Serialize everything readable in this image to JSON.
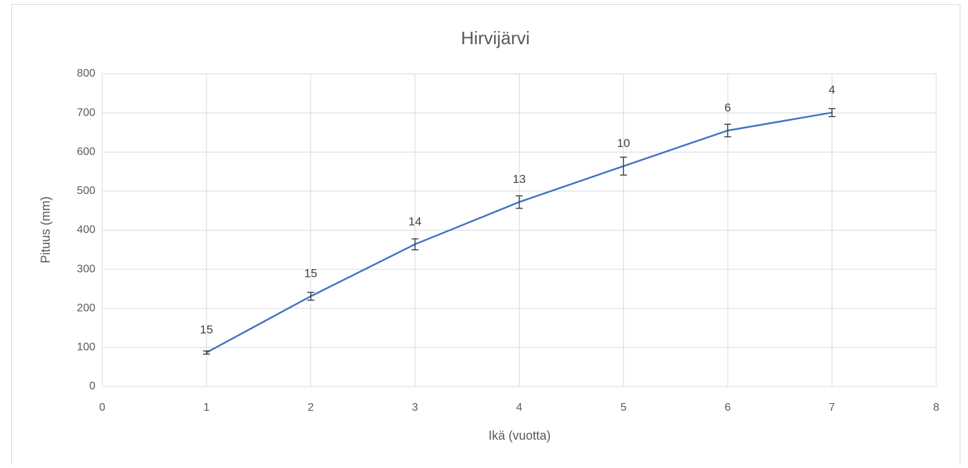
{
  "chart_data": {
    "type": "line",
    "title": "Hirvijärvi",
    "x_label": "Ikä (vuotta)",
    "y_label": "Pituus (mm)",
    "x": [
      1,
      2,
      3,
      4,
      5,
      6,
      7
    ],
    "series": [
      {
        "name": "Pituus",
        "color": "#4472c4",
        "values": [
          87,
          231,
          364,
          472,
          564,
          655,
          701
        ],
        "errors": [
          4,
          10,
          14,
          16,
          23,
          16,
          10
        ],
        "labels": [
          15,
          15,
          14,
          13,
          10,
          6,
          4
        ]
      }
    ],
    "error_color": "#404040",
    "xlim": [
      0,
      8
    ],
    "xticks": [
      0,
      1,
      2,
      3,
      4,
      5,
      6,
      7,
      8
    ],
    "ylim": [
      0,
      800
    ],
    "yticks": [
      0,
      100,
      200,
      300,
      400,
      500,
      600,
      700,
      800
    ],
    "grid": true
  }
}
